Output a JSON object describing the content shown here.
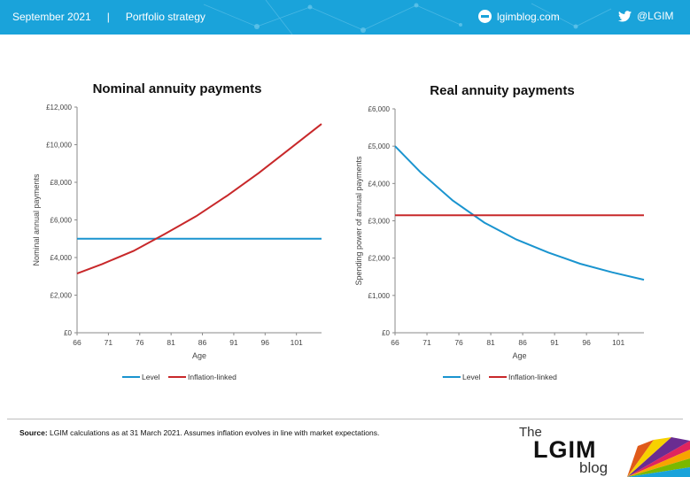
{
  "header": {
    "date": "September 2021",
    "separator": "|",
    "section": "Portfolio strategy",
    "site": "lgimblog.com",
    "twitter": "@LGIM",
    "icons": [
      "globe-icon",
      "twitter-bird-icon"
    ],
    "background_color": "#1aa3da"
  },
  "chart_data": [
    {
      "type": "line",
      "title": "Nominal annuity payments",
      "xlabel": "Age",
      "ylabel": "Nominal annual payments",
      "xlim": [
        66,
        105
      ],
      "ylim": [
        0,
        12000
      ],
      "x_ticks": [
        "66",
        "71",
        "76",
        "81",
        "86",
        "91",
        "96",
        "101"
      ],
      "y_ticks": [
        "£0",
        "£2,000",
        "£4,000",
        "£6,000",
        "£8,000",
        "£10,000",
        "£12,000"
      ],
      "grid": false,
      "legend_position": "bottom",
      "series": [
        {
          "name": "Level",
          "color": "#1a94cf",
          "x": [
            66,
            70,
            75,
            80,
            85,
            90,
            95,
            100,
            105
          ],
          "y": [
            5000,
            5000,
            5000,
            5000,
            5000,
            5000,
            5000,
            5000,
            5000
          ]
        },
        {
          "name": "Inflation-linked",
          "color": "#c8282a",
          "x": [
            66,
            70,
            75,
            80,
            85,
            90,
            95,
            100,
            105
          ],
          "y": [
            3150,
            3650,
            4350,
            5250,
            6200,
            7300,
            8500,
            9800,
            11100
          ]
        }
      ]
    },
    {
      "type": "line",
      "title": "Real annuity payments",
      "xlabel": "Age",
      "ylabel": "Spending power of annual payments",
      "xlim": [
        66,
        105
      ],
      "ylim": [
        0,
        6000
      ],
      "x_ticks": [
        "66",
        "71",
        "76",
        "81",
        "86",
        "91",
        "96",
        "101"
      ],
      "y_ticks": [
        "£0",
        "£1,000",
        "£2,000",
        "£3,000",
        "£4,000",
        "£5,000",
        "£6,000"
      ],
      "grid": false,
      "legend_position": "bottom",
      "series": [
        {
          "name": "Level",
          "color": "#1a94cf",
          "x": [
            66,
            70,
            75,
            80,
            85,
            90,
            95,
            100,
            105
          ],
          "y": [
            5000,
            4300,
            3550,
            2950,
            2500,
            2150,
            1850,
            1620,
            1420
          ]
        },
        {
          "name": "Inflation-linked",
          "color": "#c8282a",
          "x": [
            66,
            70,
            75,
            80,
            85,
            90,
            95,
            100,
            105
          ],
          "y": [
            3150,
            3150,
            3150,
            3150,
            3150,
            3150,
            3150,
            3150,
            3150
          ]
        }
      ]
    }
  ],
  "footer": {
    "source_label": "Source:",
    "source_text": " LGIM  calculations as at 31 March 2021. Assumes inflation evolves in line with market expectations.",
    "logo_the": "The",
    "logo_lgim": "LGIM",
    "logo_blog": "blog"
  }
}
